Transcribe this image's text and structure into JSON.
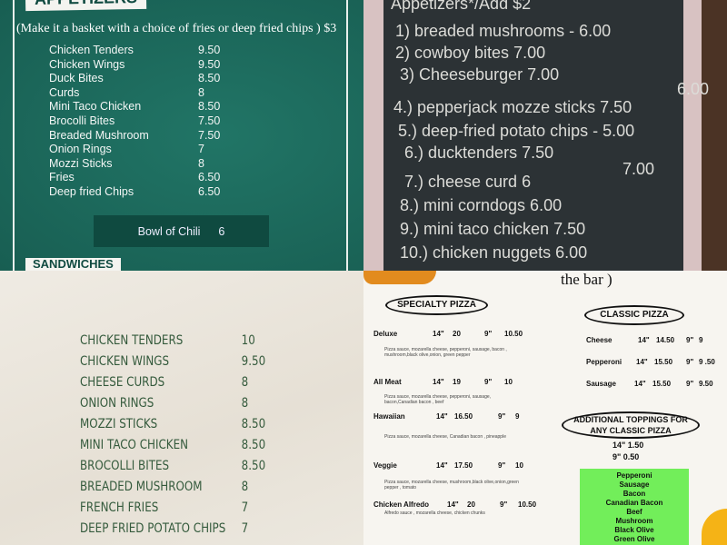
{
  "teal_menu": {
    "header": "APPETIZERS",
    "subtitle": "(Make it a basket with a choice of fries or deep fried chips ) $3",
    "items": [
      {
        "name": "Chicken Tenders",
        "price": "9.50"
      },
      {
        "name": "Chicken Wings",
        "price": "9.50"
      },
      {
        "name": "Duck Bites",
        "price": "8.50"
      },
      {
        "name": "Curds",
        "price": "8"
      },
      {
        "name": "Mini Taco Chicken",
        "price": "8.50"
      },
      {
        "name": "Brocolli Bites",
        "price": "7.50"
      },
      {
        "name": "Breaded Mushroom",
        "price": "7.50"
      },
      {
        "name": "Onion Rings",
        "price": "7"
      },
      {
        "name": "Mozzi Sticks",
        "price": "8"
      },
      {
        "name": "Fries",
        "price": "6.50"
      },
      {
        "name": "Deep fried Chips",
        "price": "6.50"
      }
    ],
    "chili": {
      "name": "Bowl of Chili",
      "price": "6"
    },
    "next_section": "SANDWICHES",
    "bg_color": "#1e6b5e"
  },
  "chalkboard": {
    "lines": [
      "Appetizers*/Add $2",
      "1) breaded mushrooms - 6.00",
      "2) cowboy bites 7.00",
      "3) Cheeseburger 7.00",
      "6.00",
      "4.) pepperjack mozze sticks 7.50",
      "5.) deep-fried potato chips - 5.00",
      "6.) ducktenders 7.50",
      "7.00",
      "7.) cheese curd 6",
      "8.) mini corndogs 6.00",
      "9.) mini taco chicken 7.50",
      "10.) chicken nuggets 6.00"
    ]
  },
  "paper_menu": {
    "items": [
      {
        "name": "Chicken Tenders",
        "price": "10"
      },
      {
        "name": "Chicken Wings",
        "price": "9.50"
      },
      {
        "name": "Cheese Curds",
        "price": "8"
      },
      {
        "name": "Onion Rings",
        "price": "8"
      },
      {
        "name": "Mozzi Sticks",
        "price": "8.50"
      },
      {
        "name": "Mini Taco Chicken",
        "price": "8.50"
      },
      {
        "name": "Brocolli Bites",
        "price": "8.50"
      },
      {
        "name": "Breaded Mushroom",
        "price": "8"
      },
      {
        "name": "French Fries",
        "price": "7"
      },
      {
        "name": "Deep Fried Potato Chips",
        "price": "7"
      }
    ],
    "text_color": "#345a3c"
  },
  "pizza_menu": {
    "top_text": "the bar )",
    "specialty_title": "SPECIALTY PIZZA",
    "specialty": [
      {
        "name": "Deluxe",
        "large": "14\"",
        "large_price": "20",
        "small": "9\"",
        "small_price": "10.50",
        "desc": "Pizza sauce, mozarella cheese, pepperoni, sausage, bacon , mushroom,black olive,onion, green pepper"
      },
      {
        "name": "All Meat",
        "large": "14\"",
        "large_price": "19",
        "small": "9\"",
        "small_price": "10",
        "desc": "Pizza sauce, mozarella cheese, pepperoni, sausage, bacon,Canadian bacon , beef"
      },
      {
        "name": "Hawaiian",
        "large": "14\"",
        "large_price": "16.50",
        "small": "9\"",
        "small_price": "9",
        "desc": "Pizza sauce, mozarella cheese, Canadian bacon , pineapple"
      },
      {
        "name": "Veggie",
        "large": "14\"",
        "large_price": "17.50",
        "small": "9\"",
        "small_price": "10",
        "desc": "Pizza sauce, mozarella cheese, mushroom,black olive,onion,green pepper , tomato"
      },
      {
        "name": "Chicken Alfredo",
        "large": "14\"",
        "large_price": "20",
        "small": "9\"",
        "small_price": "10.50",
        "desc": "Alfredo sauce , mozarella cheese, chicken chunks"
      }
    ],
    "classic_title": "CLASSIC PIZZA",
    "classic": [
      {
        "name": "Cheese",
        "large": "14\"",
        "large_price": "14.50",
        "small": "9\"",
        "small_price": "9"
      },
      {
        "name": "Pepperoni",
        "large": "14\"",
        "large_price": "15.50",
        "small": "9\"",
        "small_price": "9 .50"
      },
      {
        "name": "Sausage",
        "large": "14\"",
        "large_price": "15.50",
        "small": "9\"",
        "small_price": "9.50"
      }
    ],
    "toppings_title_1": "ADDITIONAL TOPPINGS FOR",
    "toppings_title_2": "ANY CLASSIC PIZZA",
    "toppings_price_1": "14\" 1.50",
    "toppings_price_2": "9\" 0.50",
    "toppings": [
      "Pepperoni",
      "Sausage",
      "Bacon",
      "Canadian Bacon",
      "Beef",
      "Mushroom",
      "Black Olive",
      "Green Olive"
    ],
    "toppings_bg": "#72ee5a"
  }
}
